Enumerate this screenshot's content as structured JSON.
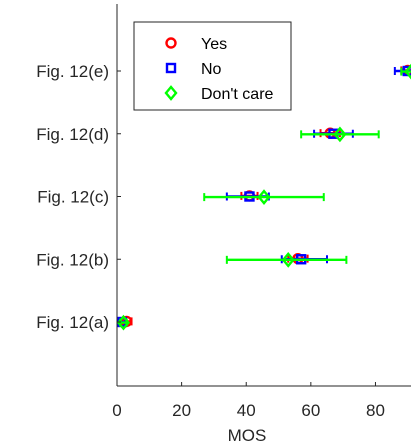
{
  "chart_data": {
    "type": "scatter",
    "orientation": "horizontal",
    "title": "",
    "xlabel": "MOS",
    "ylabel": "",
    "xlim": [
      0,
      91
    ],
    "xticks": [
      0,
      20,
      40,
      60,
      80
    ],
    "categories": [
      "Fig. 12(a)",
      "Fig. 12(b)",
      "Fig. 12(c)",
      "Fig. 12(d)",
      "Fig. 12(e)"
    ],
    "grid": false,
    "legend_position": "top-left",
    "series": [
      {
        "name": "Yes",
        "marker": "circle",
        "color": "#ff0000",
        "points": [
          {
            "category": "Fig. 12(a)",
            "mean": 3.0,
            "low": 1.5,
            "high": 4.5
          },
          {
            "category": "Fig. 12(b)",
            "mean": 56.0,
            "low": 53.0,
            "high": 59.0
          },
          {
            "category": "Fig. 12(c)",
            "mean": 41.0,
            "low": 38.5,
            "high": 43.5
          },
          {
            "category": "Fig. 12(d)",
            "mean": 66.0,
            "low": 63.0,
            "high": 69.0
          },
          {
            "category": "Fig. 12(e)",
            "mean": 90.0,
            "low": 88.0,
            "high": 92.0
          }
        ]
      },
      {
        "name": "No",
        "marker": "square",
        "color": "#0000ff",
        "points": [
          {
            "category": "Fig. 12(a)",
            "mean": 1.5,
            "low": 0.5,
            "high": 2.5
          },
          {
            "category": "Fig. 12(b)",
            "mean": 57.0,
            "low": 51.0,
            "high": 65.0
          },
          {
            "category": "Fig. 12(c)",
            "mean": 41.0,
            "low": 34.0,
            "high": 47.0
          },
          {
            "category": "Fig. 12(d)",
            "mean": 67.0,
            "low": 61.0,
            "high": 73.0
          },
          {
            "category": "Fig. 12(e)",
            "mean": 90.0,
            "low": 86.0,
            "high": 94.0
          }
        ]
      },
      {
        "name": "Don't care",
        "marker": "diamond",
        "color": "#00ff00",
        "points": [
          {
            "category": "Fig. 12(a)",
            "mean": 2.0,
            "low": 1.0,
            "high": 3.0
          },
          {
            "category": "Fig. 12(b)",
            "mean": 53.0,
            "low": 34.0,
            "high": 71.0
          },
          {
            "category": "Fig. 12(c)",
            "mean": 45.5,
            "low": 27.0,
            "high": 64.0
          },
          {
            "category": "Fig. 12(d)",
            "mean": 69.0,
            "low": 57.0,
            "high": 81.0
          },
          {
            "category": "Fig. 12(e)",
            "mean": 91.0,
            "low": 88.0,
            "high": 95.0
          }
        ]
      }
    ]
  }
}
